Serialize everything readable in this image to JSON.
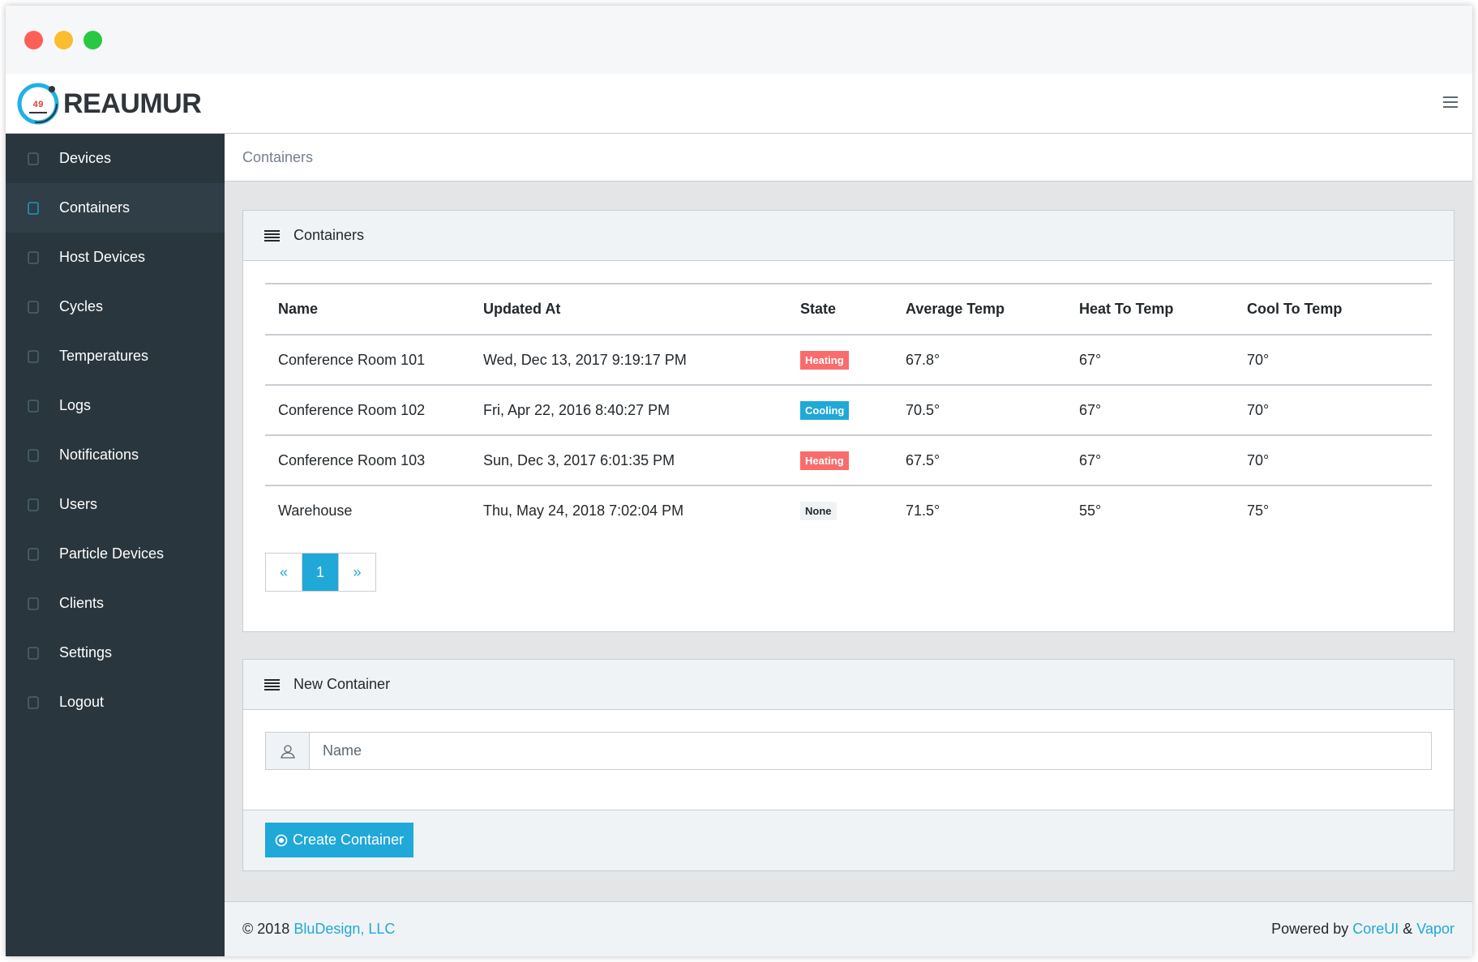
{
  "app": {
    "name": "REAUMUR",
    "logo_number": "49"
  },
  "sidebar": {
    "items": [
      {
        "label": "Devices",
        "icon": "location-pin-icon"
      },
      {
        "label": "Containers",
        "icon": "map-icon",
        "active": true
      },
      {
        "label": "Host Devices",
        "icon": "bulb-icon"
      },
      {
        "label": "Cycles",
        "icon": "energy-icon"
      },
      {
        "label": "Temperatures",
        "icon": "bar-chart-icon"
      },
      {
        "label": "Logs",
        "icon": "notebook-icon"
      },
      {
        "label": "Notifications",
        "icon": "bell-icon"
      },
      {
        "label": "Users",
        "icon": "user-icon"
      },
      {
        "label": "Particle Devices",
        "icon": "globe-icon"
      },
      {
        "label": "Clients",
        "icon": "signpost-icon"
      },
      {
        "label": "Settings",
        "icon": "speedometer-icon"
      },
      {
        "label": "Logout",
        "icon": "logout-icon"
      }
    ]
  },
  "breadcrumb": "Containers",
  "containers_card": {
    "title": "Containers",
    "columns": [
      "Name",
      "Updated At",
      "State",
      "Average Temp",
      "Heat To Temp",
      "Cool To Temp"
    ],
    "rows": [
      {
        "name": "Conference Room 101",
        "updated": "Wed, Dec 13, 2017 9:19:17 PM",
        "state": "Heating",
        "avg": "67.8°",
        "heat": "67°",
        "cool": "70°"
      },
      {
        "name": "Conference Room 102",
        "updated": "Fri, Apr 22, 2016 8:40:27 PM",
        "state": "Cooling",
        "avg": "70.5°",
        "heat": "67°",
        "cool": "70°"
      },
      {
        "name": "Conference Room 103",
        "updated": "Sun, Dec 3, 2017 6:01:35 PM",
        "state": "Heating",
        "avg": "67.5°",
        "heat": "67°",
        "cool": "70°"
      },
      {
        "name": "Warehouse",
        "updated": "Thu, May 24, 2018 7:02:04 PM",
        "state": "None",
        "avg": "71.5°",
        "heat": "55°",
        "cool": "75°"
      }
    ],
    "pagination": {
      "prev": "«",
      "current": "1",
      "next": "»"
    }
  },
  "new_container": {
    "title": "New Container",
    "name_placeholder": "Name",
    "button": "Create Container"
  },
  "footer": {
    "copyright": "© 2018",
    "company": "BluDesign, LLC",
    "powered": "Powered by",
    "coreui": "CoreUI",
    "amp": "&",
    "vapor": "Vapor"
  },
  "colors": {
    "Heating": "#f86c6b",
    "Cooling": "#20a8d8",
    "None": "#f0f3f5",
    "accent": "#20a8d8"
  }
}
